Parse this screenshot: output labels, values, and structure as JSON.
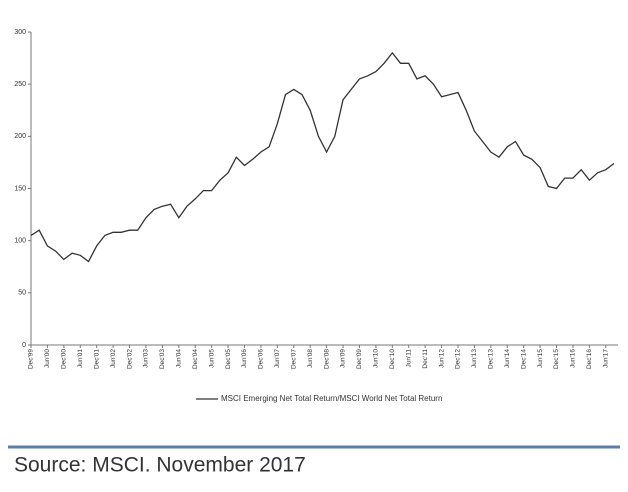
{
  "chart_data": {
    "type": "line",
    "categories": [
      "Dec'99",
      null,
      "Jun'00",
      null,
      "Dec'00",
      null,
      "Jun'01",
      null,
      "Dec'01",
      null,
      "Jun'02",
      null,
      "Dec'02",
      null,
      "Jun'03",
      null,
      "Dec'03",
      null,
      "Jun'04",
      null,
      "Dec'04",
      null,
      "Jun'05",
      null,
      "Dec'05",
      null,
      "Jun'06",
      null,
      "Dec'06",
      null,
      "Jun'07",
      null,
      "Dec'07",
      null,
      "Jun'08",
      null,
      "Dec'08",
      null,
      "Jun'09",
      null,
      "Dec'09",
      null,
      "Jun'10",
      null,
      "Dec'10",
      null,
      "Jun'11",
      null,
      "Dec'11",
      null,
      "Jun'12",
      null,
      "Dec'12",
      null,
      "Jun'13",
      null,
      "Dec'13",
      null,
      "Jun'14",
      null,
      "Dec'14",
      null,
      "Jun'15",
      null,
      "Dec'15",
      null,
      "Jun'16",
      null,
      "Dec'16",
      null,
      "Jun'17",
      null
    ],
    "series": [
      {
        "name": "MSCI Emerging Net Total Return/MSCI World Net Total Return",
        "color": "#333333",
        "values": [
          105,
          110,
          95,
          90,
          82,
          88,
          86,
          80,
          95,
          105,
          108,
          108,
          110,
          110,
          122,
          130,
          133,
          135,
          122,
          133,
          140,
          148,
          148,
          158,
          165,
          180,
          172,
          178,
          185,
          190,
          212,
          240,
          245,
          240,
          225,
          200,
          185,
          200,
          235,
          245,
          255,
          258,
          262,
          270,
          280,
          270,
          270,
          255,
          258,
          250,
          238,
          240,
          242,
          225,
          205,
          195,
          185,
          180,
          190,
          195,
          182,
          178,
          170,
          152,
          150,
          160,
          160,
          168,
          158,
          165,
          168,
          174
        ]
      }
    ],
    "ylim": [
      0,
      300
    ],
    "yticks": [
      0,
      50,
      100,
      150,
      200,
      250,
      300
    ]
  },
  "source": "Source: MSCI. November 2017"
}
